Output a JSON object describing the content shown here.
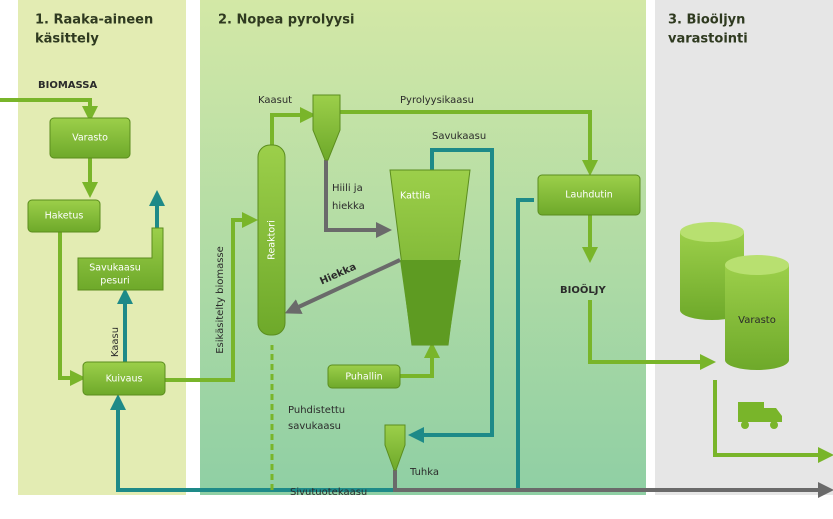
{
  "sections": [
    {
      "title": [
        "1. Raaka-aineen",
        "käsittely"
      ]
    },
    {
      "title": [
        "2. Nopea pyrolyysi"
      ]
    },
    {
      "title": [
        "3. Bioöljyn",
        "varastointi"
      ]
    }
  ],
  "nodes": {
    "varasto": "Varasto",
    "haketus": "Haketus",
    "pesuri": [
      "Savukaasu",
      "pesuri"
    ],
    "kuivaus": "Kuivaus",
    "reaktori": "Reaktori",
    "kattila": "Kattila",
    "lauhdutin": "Lauhdutin",
    "puhallin": "Puhallin",
    "tank": "Varasto"
  },
  "flows": {
    "biomassa": "BIOMASSA",
    "kaasu": "Kaasu",
    "esikasitelty": "Esikäsitelty biomasse",
    "kaasut": "Kaasut",
    "pyrolyysikaasu": "Pyrolyysikaasu",
    "savukaasu": "Savukaasu",
    "hiili": [
      "Hiili ja",
      "hiekka"
    ],
    "hiekka": "Hiekka",
    "biooljy": "BIOÖLJY",
    "puhdistettu": [
      "Puhdistettu",
      "savukaasu"
    ],
    "tuhka": "Tuhka",
    "sivutuote": "Sivutuotekaasu"
  }
}
